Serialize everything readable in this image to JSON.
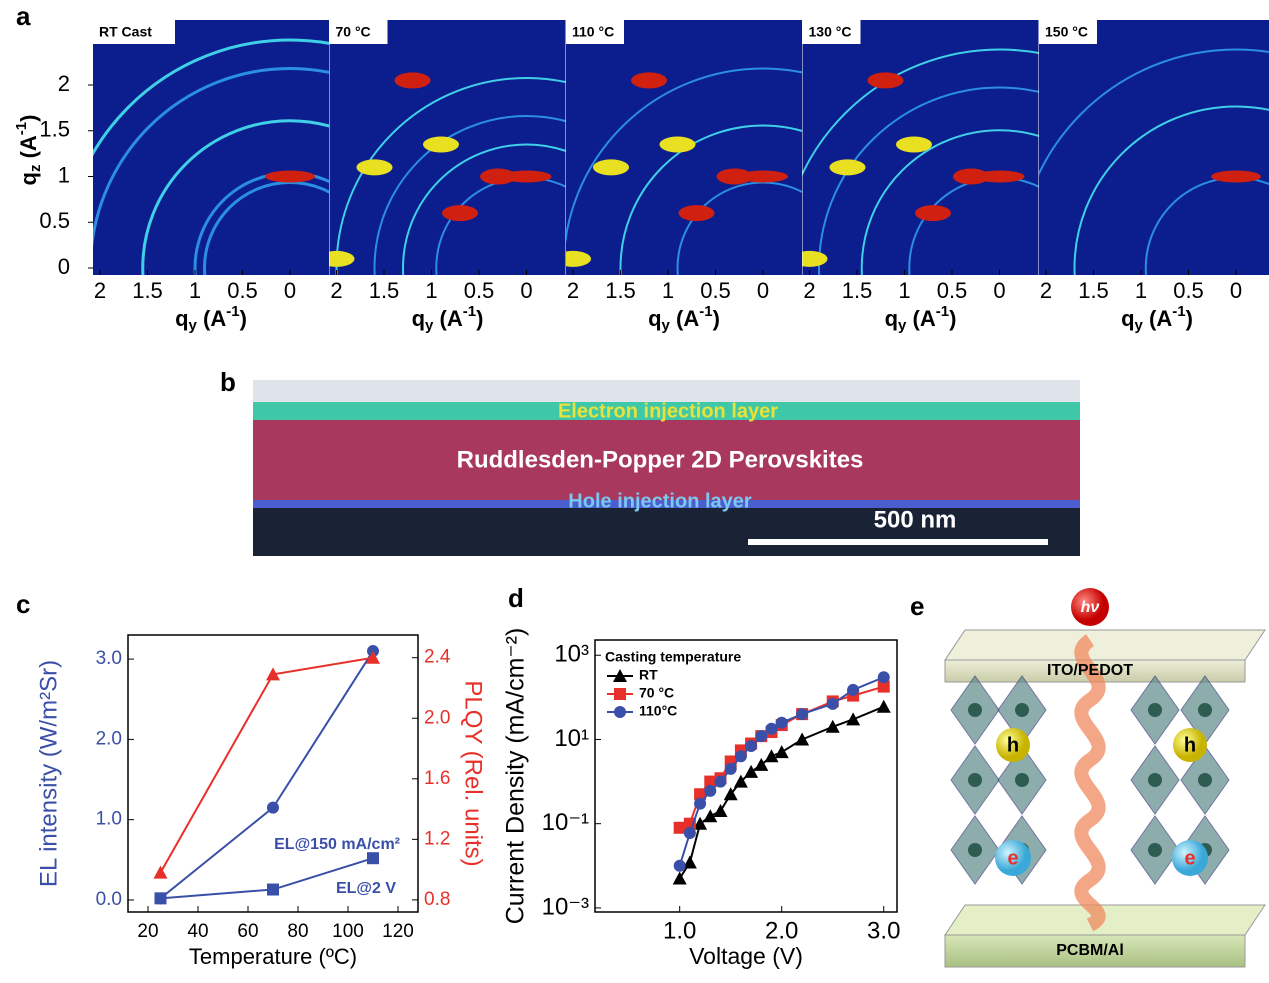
{
  "panel_labels": [
    "a",
    "b",
    "c",
    "d",
    "e"
  ],
  "panel_a": {
    "y_label": [
      "q",
      "z",
      " (A",
      "-1",
      ")"
    ],
    "x_label": [
      "q",
      "y",
      " (A",
      "-1",
      ")"
    ],
    "yticks": [
      0,
      0.5,
      1,
      1.5,
      2
    ],
    "xticks": [
      2,
      1.5,
      1,
      0.5,
      0
    ],
    "images": [
      "RT Cast",
      "70 °C",
      "110 °C",
      "130 °C",
      "150 °C"
    ]
  },
  "panel_b": {
    "layers": [
      "Electron injection layer",
      "Ruddlesden-Popper 2D Perovskites",
      "Hole injection layer"
    ],
    "scale_bar": "500 nm"
  },
  "chart_data": [
    {
      "type": "line",
      "xlabel": "Temperature (ºC)",
      "ylabel": "EL intensity (W/m²Sr)",
      "y2label": "PLQY (Rel. units)",
      "ylabel_color": "#3a4fa8",
      "y2label_color": "#e8302a",
      "x": [
        25,
        70,
        110
      ],
      "xlim": [
        12,
        128
      ],
      "xticks": [
        20,
        40,
        60,
        80,
        100,
        120
      ],
      "ylim": [
        -0.15,
        3.3
      ],
      "yticks": [
        {
          "value": 0,
          "label": "0.0"
        },
        {
          "value": 1,
          "label": "1.0"
        },
        {
          "value": 2,
          "label": "2.0"
        },
        {
          "value": 3,
          "label": "3.0"
        }
      ],
      "y2lim": [
        0.72,
        2.55
      ],
      "y2ticks": [
        0.8,
        1.2,
        1.6,
        {
          "value": 2,
          "label": "2.0"
        },
        2.4
      ],
      "legend": false,
      "series": [
        {
          "name": "EL@150 mA/cm²",
          "color": "#3a4fa8",
          "marker": "circle",
          "values": [
            0.02,
            1.15,
            3.1
          ]
        },
        {
          "name": "EL@2 V",
          "color": "#3a4fa8",
          "marker": "square",
          "values": [
            0.02,
            0.13,
            0.52
          ]
        },
        {
          "color": "#e8302a",
          "marker": "triangle",
          "axis": "y2",
          "values": [
            0.98,
            2.29,
            2.4
          ]
        }
      ]
    },
    {
      "type": "line",
      "xlabel": "Voltage (V)",
      "ylabel": "Current Density (mA/cm⁻²)",
      "log_y": true,
      "x": [
        1.0,
        1.1,
        1.2,
        1.3,
        1.4,
        1.5,
        1.6,
        1.7,
        1.8,
        1.9,
        2.0,
        2.2,
        2.5,
        2.7,
        3.0
      ],
      "xlim": [
        0.17,
        3.13
      ],
      "xticks": [
        {
          "value": 1,
          "label": "1.0"
        },
        {
          "value": 2,
          "label": "2.0"
        },
        {
          "value": 3,
          "label": "3.0"
        }
      ],
      "ylim": [
        0.0008,
        2300
      ],
      "yticks": [
        {
          "value": 0.001,
          "label": "10⁻³"
        },
        {
          "value": 0.1,
          "label": "10⁻¹"
        },
        {
          "value": 10,
          "label": "10¹"
        },
        {
          "value": 1000,
          "label": "10³"
        }
      ],
      "legend": "upper left",
      "legend_title": "Casting temperature",
      "series": [
        {
          "name": "RT",
          "color": "#000000",
          "marker": "triangle",
          "values": [
            0.005,
            0.012,
            0.1,
            0.15,
            0.2,
            0.5,
            1,
            1.7,
            2.5,
            4,
            5,
            10,
            20,
            30,
            60
          ]
        },
        {
          "name": "70 °C",
          "color": "#e8302a",
          "marker": "square",
          "values": [
            0.08,
            0.1,
            0.5,
            1,
            1.2,
            3,
            5.5,
            8,
            12,
            15,
            22,
            40,
            80,
            110,
            180
          ]
        },
        {
          "name": "110°C",
          "color": "#3a4fa8",
          "marker": "circle",
          "values": [
            0.01,
            0.06,
            0.3,
            0.6,
            1,
            2,
            4,
            7,
            12,
            18,
            25,
            40,
            70,
            150,
            300
          ]
        }
      ]
    }
  ],
  "panel_e": {
    "photon": "hν",
    "top": "ITO/PEDOT",
    "bottom": "PCBM/Al",
    "holes": [
      "h",
      "h"
    ],
    "electrons": [
      "e",
      "e"
    ]
  }
}
